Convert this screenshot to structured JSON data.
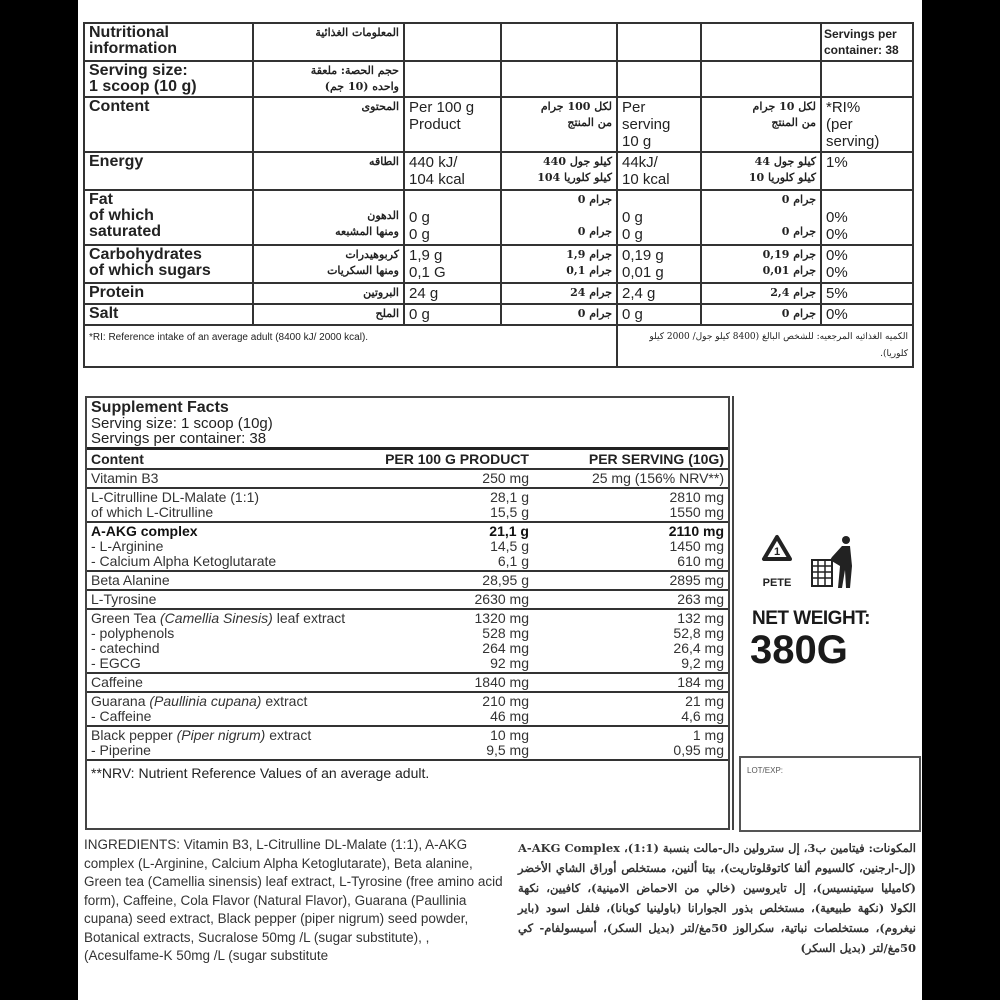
{
  "nutrition": {
    "rows": [
      [
        "Nutritional\ninformation",
        "المعلومات الغذائية",
        "",
        "",
        "",
        "",
        "Servings per\ncontainer: 38"
      ],
      [
        "Serving size:\n1 scoop (10 g)",
        "حجم الحصة: ملعقة\nواحده (10 جم)",
        "",
        "",
        "",
        "",
        ""
      ],
      [
        "Content",
        "المحتوى",
        "Per 100 g\nProduct",
        "لكل 100 جرام\nمن المنتج",
        "Per\nserving\n10 g",
        "لكل 10 جرام\nمن المنتج",
        "*RI%\n(per\nserving)"
      ],
      [
        "Energy",
        "الطاقه",
        "440 kJ/\n104 kcal",
        "كيلو جول 440\nكيلو كلوريا 104",
        "44kJ/\n10 kcal",
        "كيلو جول 44\nكيلو كلوريا 10",
        "1%"
      ],
      [
        "Fat\nof which\nsaturated",
        "\nالدهون\nومنها المشبعه",
        "\n0 g\n0 g",
        "جرام 0\n\nجرام 0",
        "\n0 g\n0 g",
        "جرام 0\n\nجرام 0",
        "\n0%\n0%"
      ],
      [
        "Carbohydrates\nof which sugars",
        "كربوهيدرات\nومنها السكريات",
        "1,9 g\n0,1 G",
        "جرام 1,9\nجرام 0,1",
        "0,19 g\n0,01 g",
        "جرام 0,19\nجرام 0,01",
        "0%\n0%"
      ],
      [
        "Protein",
        "البروتين",
        "24 g",
        "جرام 24",
        "2,4 g",
        "جرام 2,4",
        "5%"
      ],
      [
        "Salt",
        "الملح",
        "0 g",
        "جرام 0",
        "0 g",
        "جرام 0",
        "0%"
      ]
    ],
    "footnote_en": "*RI: Reference intake of an average adult (8400 kJ/ 2000 kcal).",
    "footnote_ar": "الكميه الغذائيه المرجعيه: للشخص البالغ (8400 كيلو جول/ 2000 كيلو كلوريا)."
  },
  "supplement": {
    "title": "Supplement Facts",
    "serving_size": "Serving size: 1 scoop (10g)",
    "servings": "Servings per container: 38",
    "headers": [
      "Content",
      "PER 100 G PRODUCT",
      "PER SERVING (10G)"
    ],
    "groups": [
      [
        {
          "name": "Vitamin B3",
          "p100": "250 mg",
          "ps": "25 mg (156% NRV**)"
        }
      ],
      [
        {
          "name": "L-Citrulline DL-Malate (1:1)",
          "p100": "28,1 g",
          "ps": "2810 mg"
        },
        {
          "name": "of which L-Citrulline",
          "p100": "15,5 g",
          "ps": "1550 mg"
        }
      ],
      [
        {
          "name": "A-AKG complex",
          "p100": "21,1 g",
          "ps": "2110 mg",
          "bold": true
        },
        {
          "name": "- L-Arginine",
          "p100": "14,5 g",
          "ps": "1450 mg"
        },
        {
          "name": "- Calcium Alpha Ketoglutarate",
          "p100": "6,1 g",
          "ps": "610 mg"
        }
      ],
      [
        {
          "name": "Beta Alanine",
          "p100": "28,95 g",
          "ps": "2895 mg"
        }
      ],
      [
        {
          "name": "L-Tyrosine",
          "p100": "2630 mg",
          "ps": "263 mg"
        }
      ],
      [
        {
          "name": "Green Tea ",
          "italic": "(Camellia  Sinesis)",
          "suffix": " leaf extract",
          "p100": "1320 mg",
          "ps": "132 mg"
        },
        {
          "name": "- polyphenols",
          "p100": "528 mg",
          "ps": "52,8 mg"
        },
        {
          "name": "- catechind",
          "p100": "264 mg",
          "ps": "26,4 mg"
        },
        {
          "name": "- EGCG",
          "p100": "92 mg",
          "ps": "9,2 mg"
        }
      ],
      [
        {
          "name": "Caffeine",
          "p100": "1840 mg",
          "ps": "184 mg"
        }
      ],
      [
        {
          "name": "Guarana ",
          "italic": "(Paullinia cupana)",
          "suffix": " extract",
          "p100": "210 mg",
          "ps": "21 mg"
        },
        {
          "name": "- Caffeine",
          "p100": "46 mg",
          "ps": "4,6 mg"
        }
      ],
      [
        {
          "name": "Black pepper ",
          "italic": "(Piper nigrum)",
          "suffix": " extract",
          "p100": "10 mg",
          "ps": "1 mg"
        },
        {
          "name": "- Piperine",
          "p100": "9,5 mg",
          "ps": "0,95 mg"
        }
      ]
    ],
    "nrv_note": "**NRV: Nutrient Reference Values of an average adult."
  },
  "side": {
    "recycle_code": "1",
    "recycle_label": "PETE",
    "icons": [
      "recycle-pete-icon",
      "dispose-in-bin-icon"
    ],
    "net_weight_label": "NET WEIGHT:",
    "net_weight_value": "380G",
    "lot_label": "LOT/EXP:"
  },
  "ingredients": {
    "en": "INGREDIENTS: Vitamin B3, L-Citrulline DL-Malate (1:1), A-AKG complex (L-Arginine, Calcium Alpha Ketoglutarate), Beta alanine, Green tea (Camellia sinensis) leaf extract, L-Tyrosine (free amino acid form), Caffeine, Cola Flavor (Natural Flavor), Guarana (Paullinia cupana) seed extract, Black pepper (piper nigrum) seed powder, Botanical extracts, Sucralose 50mg /L (sugar substitute), ,(Acesulfame-K 50mg /L (sugar substitute",
    "ar": "المكونات: فيتامين ب3، إل سترولين دال-مالت بنسبة (1:1)، A-AKG Complex (إل-ارجنين، كالسيوم ألفا كاتوقلوتاريت)، بيتا ألنين، مستخلص أوراق الشاي الأخضر (كاميليا سيتينسيس)، إل تايروسين (خالي من الاحماض الامينية)، كافيين، نكهة الكولا (نكهة طبيعية)، مستخلص بذور الجوارانا (باولينيا كوبانا)، فلفل اسود (باير نيغروم)، مستخلصات نباتية، سكرالوز 50مغ/لتر (بديل السكر)، أسيسولفام- كي 50مغ/لتر (بديل السكر)"
  }
}
